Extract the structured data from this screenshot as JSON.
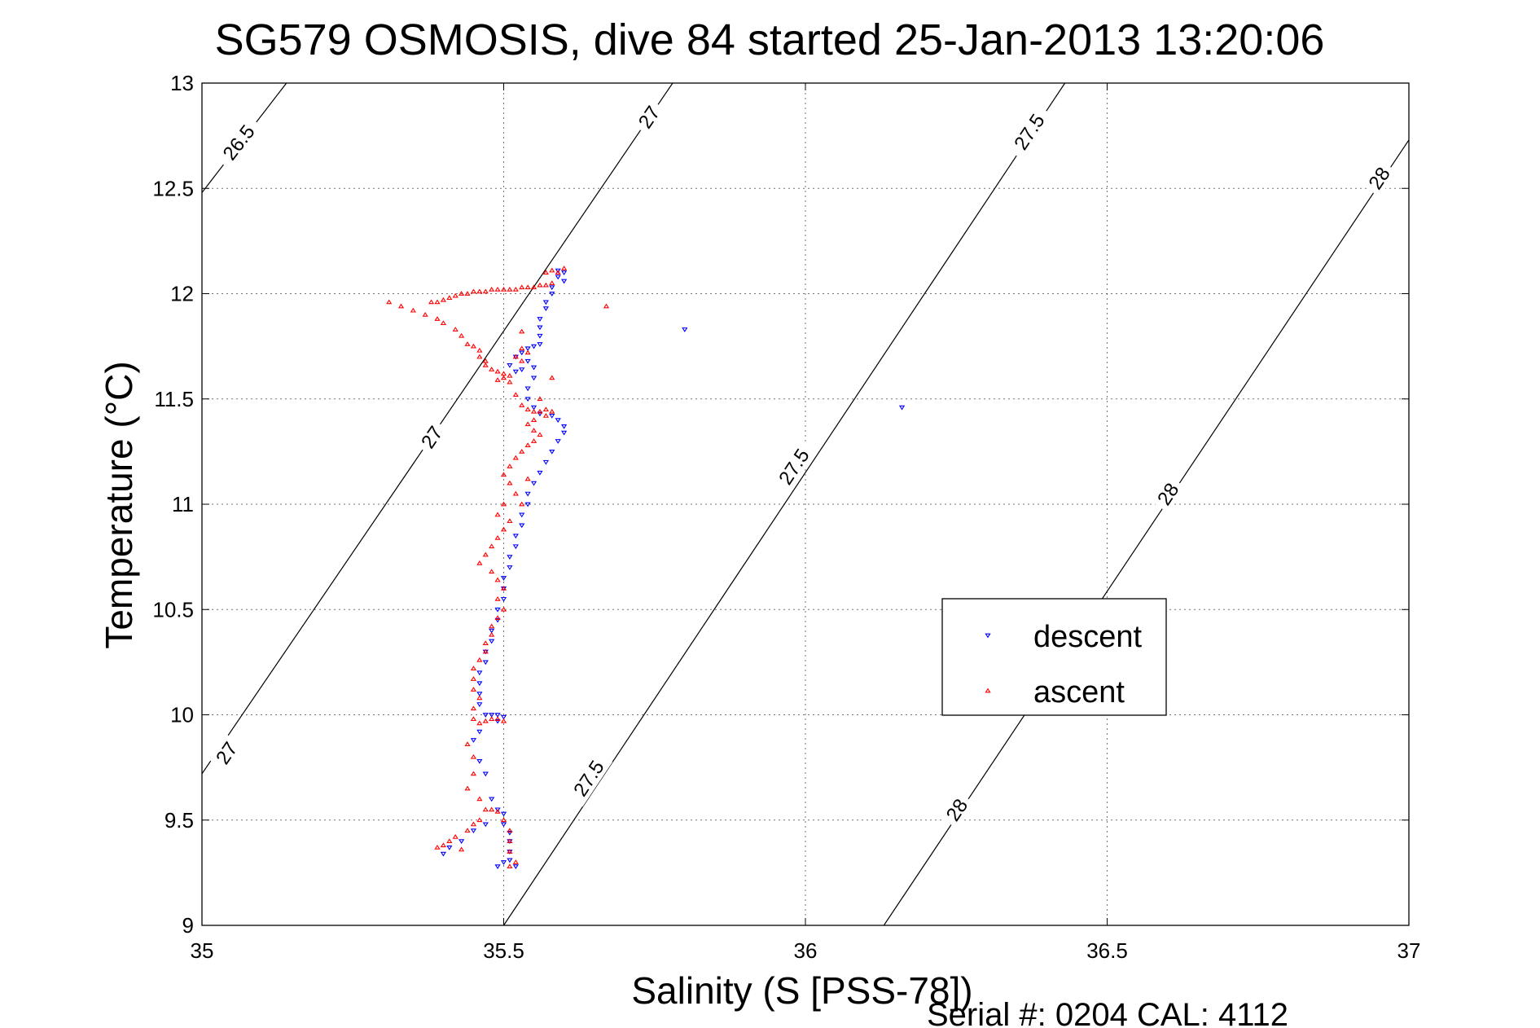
{
  "chart_data": {
    "type": "scatter",
    "title": "SG579 OSMOSIS, dive 84 started 25-Jan-2013 13:20:06",
    "xlabel": "Salinity (S [PSS-78])",
    "ylabel": "Temperature (°C)",
    "footer": "Serial #: 0204  CAL: 4112",
    "xlim": [
      35,
      37
    ],
    "ylim": [
      9,
      13
    ],
    "xticks": [
      "35",
      "35.5",
      "36",
      "36.5",
      "37"
    ],
    "yticks": [
      "9",
      "9.5",
      "10",
      "10.5",
      "11",
      "11.5",
      "12",
      "12.5",
      "13"
    ],
    "grid": true,
    "legend_position": "inside-right",
    "series": [
      {
        "name": "descent",
        "color": "#0000ff",
        "marker": "triangle-down",
        "points": [
          [
            35.59,
            12.11
          ],
          [
            35.6,
            12.1
          ],
          [
            35.59,
            12.08
          ],
          [
            35.6,
            12.06
          ],
          [
            35.58,
            12.03
          ],
          [
            35.58,
            12.0
          ],
          [
            35.57,
            11.96
          ],
          [
            35.57,
            11.93
          ],
          [
            35.56,
            11.88
          ],
          [
            35.56,
            11.84
          ],
          [
            35.56,
            11.8
          ],
          [
            35.56,
            11.76
          ],
          [
            35.55,
            11.75
          ],
          [
            35.54,
            11.74
          ],
          [
            35.53,
            11.72
          ],
          [
            35.52,
            11.7
          ],
          [
            35.51,
            11.66
          ],
          [
            35.52,
            11.63
          ],
          [
            35.53,
            11.64
          ],
          [
            35.54,
            11.68
          ],
          [
            35.55,
            11.65
          ],
          [
            35.55,
            11.6
          ],
          [
            35.54,
            11.55
          ],
          [
            35.54,
            11.5
          ],
          [
            35.55,
            11.46
          ],
          [
            35.56,
            11.43
          ],
          [
            35.58,
            11.42
          ],
          [
            35.59,
            11.4
          ],
          [
            35.6,
            11.37
          ],
          [
            35.6,
            11.34
          ],
          [
            35.59,
            11.3
          ],
          [
            35.58,
            11.25
          ],
          [
            35.57,
            11.2
          ],
          [
            35.56,
            11.15
          ],
          [
            35.55,
            11.1
          ],
          [
            35.54,
            11.05
          ],
          [
            35.54,
            11.0
          ],
          [
            35.53,
            10.95
          ],
          [
            35.53,
            10.9
          ],
          [
            35.52,
            10.85
          ],
          [
            35.52,
            10.8
          ],
          [
            35.51,
            10.75
          ],
          [
            35.51,
            10.7
          ],
          [
            35.5,
            10.65
          ],
          [
            35.5,
            10.6
          ],
          [
            35.5,
            10.55
          ],
          [
            35.49,
            10.5
          ],
          [
            35.49,
            10.45
          ],
          [
            35.48,
            10.4
          ],
          [
            35.48,
            10.35
          ],
          [
            35.47,
            10.3
          ],
          [
            35.47,
            10.25
          ],
          [
            35.46,
            10.2
          ],
          [
            35.46,
            10.15
          ],
          [
            35.46,
            10.1
          ],
          [
            35.46,
            10.05
          ],
          [
            35.47,
            10.0
          ],
          [
            35.48,
            10.0
          ],
          [
            35.49,
            10.0
          ],
          [
            35.5,
            9.99
          ],
          [
            35.49,
            9.97
          ],
          [
            35.46,
            9.92
          ],
          [
            35.45,
            9.88
          ],
          [
            35.46,
            9.78
          ],
          [
            35.47,
            9.72
          ],
          [
            35.48,
            9.6
          ],
          [
            35.49,
            9.55
          ],
          [
            35.5,
            9.53
          ],
          [
            35.5,
            9.48
          ],
          [
            35.51,
            9.44
          ],
          [
            35.51,
            9.4
          ],
          [
            35.51,
            9.35
          ],
          [
            35.51,
            9.31
          ],
          [
            35.52,
            9.28
          ],
          [
            35.47,
            9.48
          ],
          [
            35.45,
            9.45
          ],
          [
            35.43,
            9.4
          ],
          [
            35.41,
            9.37
          ],
          [
            35.4,
            9.34
          ],
          [
            35.8,
            11.83
          ],
          [
            36.16,
            11.46
          ],
          [
            35.49,
            9.28
          ],
          [
            35.5,
            9.3
          ]
        ]
      },
      {
        "name": "ascent",
        "color": "#ff0000",
        "marker": "triangle-up",
        "points": [
          [
            35.58,
            12.11
          ],
          [
            35.59,
            12.1
          ],
          [
            35.58,
            12.05
          ],
          [
            35.57,
            12.04
          ],
          [
            35.56,
            12.04
          ],
          [
            35.55,
            12.03
          ],
          [
            35.54,
            12.03
          ],
          [
            35.53,
            12.03
          ],
          [
            35.52,
            12.02
          ],
          [
            35.51,
            12.02
          ],
          [
            35.5,
            12.02
          ],
          [
            35.49,
            12.02
          ],
          [
            35.48,
            12.02
          ],
          [
            35.47,
            12.01
          ],
          [
            35.46,
            12.01
          ],
          [
            35.45,
            12.01
          ],
          [
            35.44,
            12.0
          ],
          [
            35.43,
            12.0
          ],
          [
            35.42,
            11.99
          ],
          [
            35.41,
            11.98
          ],
          [
            35.4,
            11.97
          ],
          [
            35.39,
            11.96
          ],
          [
            35.38,
            11.96
          ],
          [
            35.31,
            11.96
          ],
          [
            35.33,
            11.94
          ],
          [
            35.35,
            11.92
          ],
          [
            35.37,
            11.9
          ],
          [
            35.39,
            11.88
          ],
          [
            35.4,
            11.86
          ],
          [
            35.42,
            11.83
          ],
          [
            35.43,
            11.8
          ],
          [
            35.44,
            11.76
          ],
          [
            35.45,
            11.75
          ],
          [
            35.46,
            11.73
          ],
          [
            35.46,
            11.7
          ],
          [
            35.47,
            11.68
          ],
          [
            35.47,
            11.66
          ],
          [
            35.48,
            11.64
          ],
          [
            35.49,
            11.63
          ],
          [
            35.5,
            11.62
          ],
          [
            35.51,
            11.61
          ],
          [
            35.5,
            11.6
          ],
          [
            35.49,
            11.59
          ],
          [
            35.51,
            11.58
          ],
          [
            35.52,
            11.7
          ],
          [
            35.53,
            11.74
          ],
          [
            35.54,
            11.72
          ],
          [
            35.53,
            11.68
          ],
          [
            35.52,
            11.52
          ],
          [
            35.53,
            11.47
          ],
          [
            35.54,
            11.45
          ],
          [
            35.55,
            11.44
          ],
          [
            35.56,
            11.44
          ],
          [
            35.57,
            11.45
          ],
          [
            35.58,
            11.44
          ],
          [
            35.57,
            11.42
          ],
          [
            35.55,
            11.4
          ],
          [
            35.54,
            11.38
          ],
          [
            35.55,
            11.35
          ],
          [
            35.56,
            11.33
          ],
          [
            35.55,
            11.3
          ],
          [
            35.54,
            11.28
          ],
          [
            35.53,
            11.25
          ],
          [
            35.52,
            11.22
          ],
          [
            35.51,
            11.18
          ],
          [
            35.5,
            11.14
          ],
          [
            35.51,
            11.1
          ],
          [
            35.52,
            11.05
          ],
          [
            35.5,
            11.0
          ],
          [
            35.49,
            10.95
          ],
          [
            35.51,
            10.92
          ],
          [
            35.5,
            10.88
          ],
          [
            35.49,
            10.84
          ],
          [
            35.48,
            10.8
          ],
          [
            35.47,
            10.76
          ],
          [
            35.46,
            10.72
          ],
          [
            35.48,
            10.68
          ],
          [
            35.49,
            10.64
          ],
          [
            35.5,
            10.6
          ],
          [
            35.49,
            10.55
          ],
          [
            35.5,
            10.5
          ],
          [
            35.49,
            10.46
          ],
          [
            35.48,
            10.42
          ],
          [
            35.48,
            10.38
          ],
          [
            35.47,
            10.34
          ],
          [
            35.47,
            10.3
          ],
          [
            35.46,
            10.26
          ],
          [
            35.45,
            10.22
          ],
          [
            35.45,
            10.17
          ],
          [
            35.45,
            10.12
          ],
          [
            35.46,
            10.08
          ],
          [
            35.45,
            10.03
          ],
          [
            35.45,
            9.98
          ],
          [
            35.46,
            9.96
          ],
          [
            35.47,
            9.97
          ],
          [
            35.48,
            9.98
          ],
          [
            35.49,
            9.98
          ],
          [
            35.5,
            9.97
          ],
          [
            35.44,
            9.86
          ],
          [
            35.45,
            9.8
          ],
          [
            35.45,
            9.72
          ],
          [
            35.44,
            9.65
          ],
          [
            35.46,
            9.6
          ],
          [
            35.47,
            9.55
          ],
          [
            35.48,
            9.55
          ],
          [
            35.49,
            9.54
          ],
          [
            35.5,
            9.5
          ],
          [
            35.51,
            9.45
          ],
          [
            35.51,
            9.4
          ],
          [
            35.51,
            9.35
          ],
          [
            35.52,
            9.3
          ],
          [
            35.51,
            9.28
          ],
          [
            35.46,
            9.5
          ],
          [
            35.45,
            9.48
          ],
          [
            35.44,
            9.45
          ],
          [
            35.42,
            9.42
          ],
          [
            35.41,
            9.4
          ],
          [
            35.4,
            9.38
          ],
          [
            35.39,
            9.37
          ],
          [
            35.43,
            9.36
          ],
          [
            35.57,
            12.1
          ],
          [
            35.6,
            12.12
          ],
          [
            35.67,
            11.94
          ],
          [
            35.53,
            11.82
          ],
          [
            35.56,
            11.5
          ],
          [
            35.58,
            11.6
          ],
          [
            35.54,
            11.12
          ],
          [
            35.53,
            11.0
          ]
        ]
      }
    ],
    "isopycnals": [
      {
        "label": "26.5",
        "value": 26.5,
        "p1": [
          35.0,
          12.48
        ],
        "p2": [
          35.14,
          13.0
        ],
        "labels_at": [
          [
            35.06,
            12.72
          ]
        ]
      },
      {
        "label": "27",
        "value": 27.0,
        "p1": [
          35.0,
          9.72
        ],
        "p2": [
          35.78,
          13.0
        ],
        "labels_at": [
          [
            35.04,
            9.82
          ],
          [
            35.38,
            11.32
          ],
          [
            35.74,
            12.84
          ]
        ]
      },
      {
        "label": "27.5",
        "value": 27.5,
        "p1": [
          35.5,
          9.0
        ],
        "p2": [
          36.43,
          13.0
        ],
        "labels_at": [
          [
            35.64,
            9.7
          ],
          [
            35.98,
            11.18
          ],
          [
            36.37,
            12.77
          ]
        ]
      },
      {
        "label": "28",
        "value": 28.0,
        "p1": [
          36.13,
          9.0
        ],
        "p2": [
          37.0,
          12.73
        ],
        "labels_at": [
          [
            36.25,
            9.55
          ],
          [
            36.6,
            11.05
          ],
          [
            36.95,
            12.55
          ]
        ]
      }
    ]
  }
}
